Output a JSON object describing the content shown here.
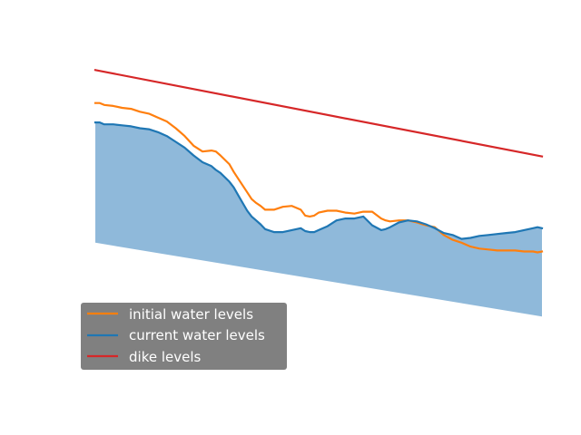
{
  "chart_data": {
    "type": "line",
    "title": "",
    "xlabel": "",
    "ylabel": "",
    "axes_visible": false,
    "grid": false,
    "xlim": [
      0,
      100
    ],
    "ylim": [
      -0.5,
      16.5
    ],
    "legend": {
      "placement": "lower-left",
      "background": "#808080",
      "text_color": "#ffffff"
    },
    "fill": {
      "between": [
        "bottom_boundary",
        "current water levels"
      ],
      "color": "#8fb9da"
    },
    "bottom_boundary": {
      "x": [
        0,
        100
      ],
      "values": [
        6.7,
        2.9
      ]
    },
    "series": [
      {
        "name": "initial water levels",
        "color": "#ff7f0e",
        "x": [
          0,
          1,
          2,
          4,
          6,
          8,
          10,
          12,
          14,
          16,
          18,
          20,
          22,
          24,
          26,
          27,
          28,
          30,
          31,
          32,
          34,
          35,
          36,
          37,
          38,
          40,
          42,
          44,
          46,
          47,
          48,
          49,
          50,
          52,
          54,
          56,
          58,
          60,
          62,
          64,
          65,
          66,
          68,
          70,
          72,
          74,
          76,
          78,
          80,
          82,
          84,
          86,
          88,
          90,
          92,
          94,
          96,
          98,
          99,
          100
        ],
        "values": [
          13.9,
          13.9,
          13.8,
          13.75,
          13.65,
          13.6,
          13.45,
          13.35,
          13.15,
          12.95,
          12.6,
          12.2,
          11.7,
          11.4,
          11.45,
          11.4,
          11.2,
          10.75,
          10.35,
          10.0,
          9.3,
          8.95,
          8.75,
          8.6,
          8.4,
          8.4,
          8.55,
          8.6,
          8.4,
          8.1,
          8.05,
          8.1,
          8.25,
          8.35,
          8.35,
          8.25,
          8.2,
          8.3,
          8.3,
          7.95,
          7.85,
          7.8,
          7.85,
          7.85,
          7.75,
          7.6,
          7.5,
          7.1,
          6.85,
          6.7,
          6.5,
          6.4,
          6.35,
          6.3,
          6.3,
          6.3,
          6.25,
          6.25,
          6.2,
          6.25
        ]
      },
      {
        "name": "current water levels",
        "color": "#1f77b4",
        "x": [
          0,
          1,
          2,
          4,
          6,
          8,
          10,
          12,
          14,
          16,
          18,
          20,
          22,
          24,
          26,
          27,
          28,
          30,
          31,
          32,
          34,
          35,
          36,
          37,
          38,
          40,
          42,
          44,
          46,
          47,
          48,
          49,
          50,
          52,
          54,
          56,
          58,
          60,
          62,
          64,
          65,
          66,
          68,
          70,
          72,
          74,
          76,
          78,
          80,
          82,
          84,
          86,
          88,
          90,
          92,
          94,
          96,
          98,
          99,
          100
        ],
        "values": [
          12.9,
          12.9,
          12.8,
          12.8,
          12.75,
          12.7,
          12.6,
          12.55,
          12.4,
          12.2,
          11.9,
          11.6,
          11.2,
          10.85,
          10.65,
          10.45,
          10.3,
          9.85,
          9.55,
          9.15,
          8.35,
          8.05,
          7.85,
          7.65,
          7.4,
          7.25,
          7.25,
          7.35,
          7.45,
          7.3,
          7.25,
          7.25,
          7.35,
          7.55,
          7.85,
          7.95,
          7.95,
          8.05,
          7.6,
          7.35,
          7.4,
          7.5,
          7.75,
          7.85,
          7.8,
          7.65,
          7.45,
          7.2,
          7.1,
          6.9,
          6.95,
          7.05,
          7.1,
          7.15,
          7.2,
          7.25,
          7.35,
          7.45,
          7.5,
          7.45
        ]
      },
      {
        "name": "dike levels",
        "color": "#d62728",
        "x": [
          0,
          100
        ],
        "values": [
          15.6,
          11.15
        ]
      }
    ]
  }
}
